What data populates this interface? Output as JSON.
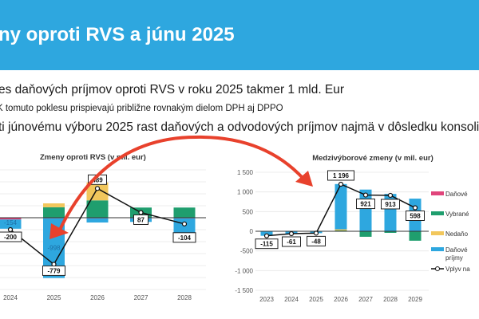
{
  "header": {
    "title": "ny oproti RVS a júnu 2025"
  },
  "bullets": [
    "es daňových príjmov oproti RVS v roku 2025 takmer 1 mld. Eur",
    "K tomuto poklesu prispievajú približne rovnakým dielom DPH aj DPPO",
    "ti júnovému výboru 2025 rast daňových a odvodových príjmov najmä v dôsledku konsolid"
  ],
  "colors": {
    "header": "#2ea7df",
    "arrow": "#e8412c",
    "pink": "#e0457b",
    "green": "#1f9e6e",
    "yellow": "#f2c75c",
    "blue": "#2ea7df",
    "line": "#111111"
  },
  "chart_data": [
    {
      "type": "bar",
      "stacked": true,
      "title": "Zmeny oproti RVS (v mil. eur)",
      "categories": [
        "2024",
        "2025",
        "2026",
        "2027",
        "2028"
      ],
      "ylim": [
        -1200,
        800
      ],
      "grid": true,
      "series": [
        {
          "values": [
            -30,
            -10,
            -10,
            -10,
            -10
          ],
          "color": "#e0457b"
        },
        {
          "values": [
            0,
            175,
            290,
            170,
            170
          ],
          "color": "#1f9e6e"
        },
        {
          "values": [
            0,
            65,
            300,
            0,
            0
          ],
          "color": "#f2c75c"
        },
        {
          "values": [
            -154,
            -998,
            -70,
            -60,
            -250
          ],
          "color": "#2ea7df",
          "data_labels": [
            "-154",
            "-998",
            null,
            null,
            null
          ]
        }
      ],
      "line": {
        "values": [
          -200,
          -779,
          489,
          87,
          -104
        ],
        "labels": [
          "-200",
          "-779",
          "489",
          "87",
          "-104"
        ]
      }
    },
    {
      "type": "bar",
      "stacked": true,
      "title": "Medzivýborové zmeny (v mil. eur)",
      "categories": [
        "2023",
        "2024",
        "2025",
        "2026",
        "2027",
        "2028",
        "2029"
      ],
      "ylim": [
        -1500,
        1500
      ],
      "yticks": [
        "1 500",
        "1 000",
        "500",
        "0",
        "-500",
        "-1 000",
        "-1 500"
      ],
      "grid": true,
      "legend_position": "right",
      "series": [
        {
          "name": "Daňové",
          "values": [
            0,
            0,
            0,
            0,
            0,
            0,
            0
          ],
          "color": "#e0457b"
        },
        {
          "name": "Vybrané",
          "values": [
            0,
            0,
            0,
            20,
            -140,
            -40,
            -240
          ],
          "color": "#1f9e6e"
        },
        {
          "name": "Nedaňo",
          "values": [
            0,
            0,
            0,
            30,
            0,
            0,
            0
          ],
          "color": "#f2c75c"
        },
        {
          "name": "Daňové príjmy",
          "values": [
            -115,
            -61,
            -48,
            1150,
            1060,
            950,
            830
          ],
          "color": "#2ea7df"
        }
      ],
      "line": {
        "name": "Vplyv na",
        "values": [
          -115,
          -61,
          -48,
          1196,
          921,
          913,
          598
        ],
        "labels": [
          "-115",
          "-61",
          "-48",
          "1 196",
          "921",
          "913",
          "598"
        ]
      }
    }
  ]
}
